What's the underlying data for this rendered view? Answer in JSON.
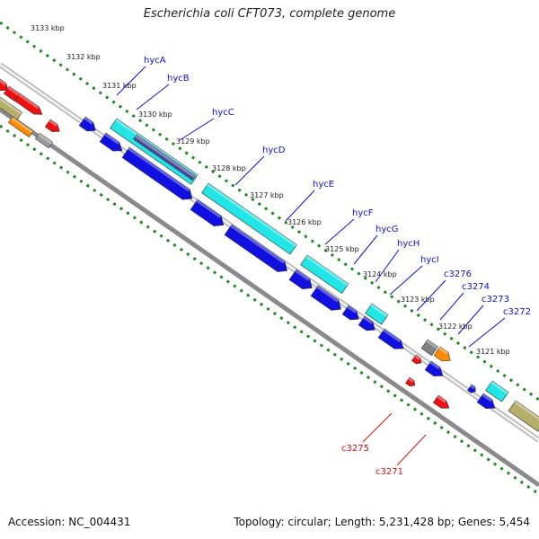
{
  "title": "Escherichia coli CFT073, complete genome",
  "footer": {
    "accession": "Accession: NC_004431",
    "topology": "Topology: circular; Length: 5,231,428 bp; Genes: 5,454"
  },
  "colors": {
    "backbone": "#8a8a8a",
    "ruler": "#1f8a1f",
    "forward_label": "#1010d0",
    "reverse_label": "#d01010",
    "cds_blue": "#1010e0",
    "rna_cyan": "#22e6e6",
    "red": "#ee1111",
    "orange": "#ff8a00",
    "khaki": "#b5ad6a",
    "gray": "#9a9a9a"
  },
  "ruler_ticks": [
    "3133 kbp",
    "3132 kbp",
    "3131 kbp",
    "3130 kbp",
    "3129 kbp",
    "3128 kbp",
    "3127 kbp",
    "3126 kbp",
    "3125 kbp",
    "3124 kbp",
    "3123 kbp",
    "3122 kbp",
    "3121 kbp"
  ],
  "gene_labels_forward": [
    "hycA",
    "hycB",
    "hycC",
    "hycD",
    "hycE",
    "hycF",
    "hycG",
    "hycH",
    "hycI",
    "c3276",
    "c3274",
    "c3273",
    "c3272"
  ],
  "gene_labels_reverse": [
    "c3275",
    "c3271"
  ]
}
